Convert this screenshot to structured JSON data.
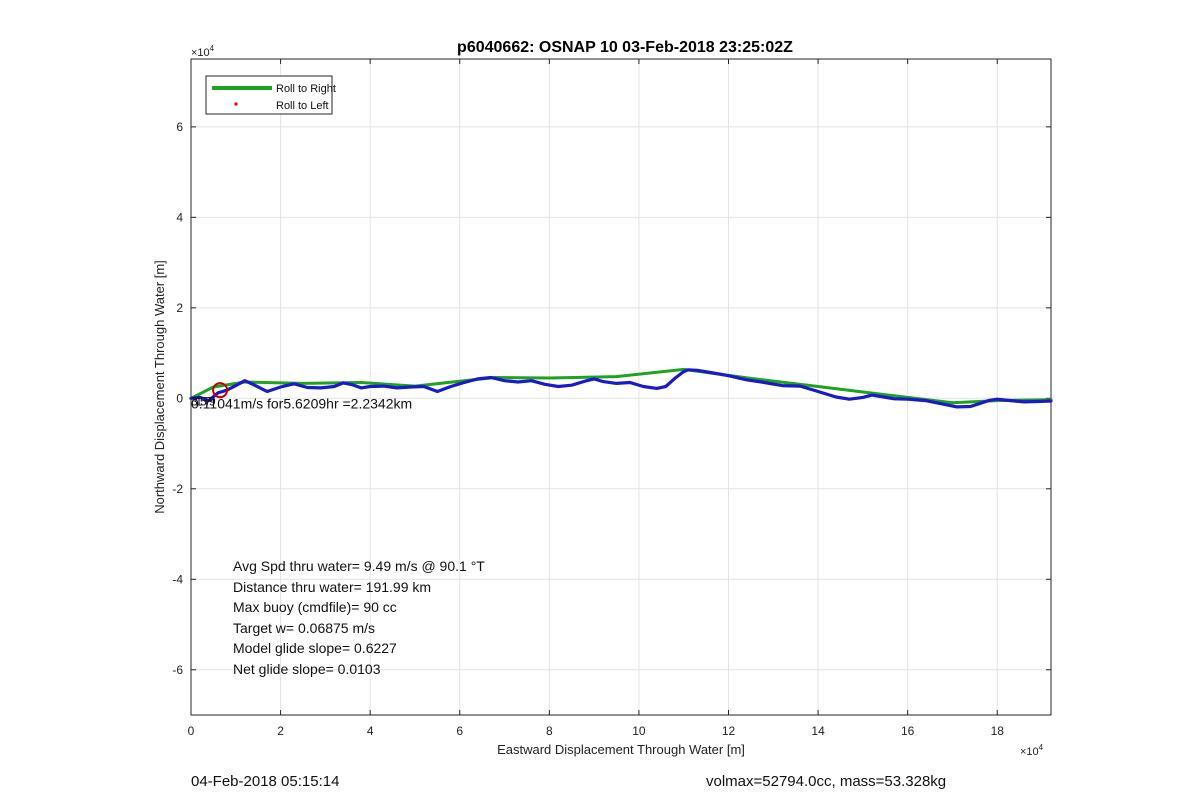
{
  "chart_data": {
    "type": "line",
    "title": "p6040662: OSNAP 10 03-Feb-2018 23:25:02Z",
    "xlabel": "Eastward Displacement Through Water [m]",
    "ylabel": "Northward Displacement Through Water [m]",
    "x_exponent_label": "×10",
    "y_exponent_label": "×10",
    "exponent": "4",
    "xlim": [
      0,
      192000
    ],
    "ylim": [
      -70000,
      75000
    ],
    "xticks": [
      0,
      20000,
      40000,
      60000,
      80000,
      100000,
      120000,
      140000,
      160000,
      180000
    ],
    "xtick_labels": [
      "0",
      "2",
      "4",
      "6",
      "8",
      "10",
      "12",
      "14",
      "16",
      "18"
    ],
    "yticks": [
      -60000,
      -40000,
      -20000,
      0,
      20000,
      40000,
      60000
    ],
    "ytick_labels": [
      "-6",
      "-4",
      "-2",
      "0",
      "2",
      "4",
      "6"
    ],
    "grid": true,
    "legend_position": "top-left",
    "legend": [
      {
        "label": "Roll to Right",
        "color": "#1fa31f",
        "marker": "line"
      },
      {
        "label": "Roll to Left",
        "color": "#e00000",
        "marker": "dot"
      }
    ],
    "series": [
      {
        "name": "Roll to Right",
        "color": "#1fa31f",
        "x": [
          0,
          5000,
          12000,
          25000,
          38000,
          50000,
          62000,
          68000,
          80000,
          95000,
          110000,
          125000,
          140000,
          155000,
          170000,
          180000,
          192000
        ],
        "y": [
          0,
          2500,
          3600,
          3300,
          3500,
          2700,
          4000,
          4600,
          4500,
          4800,
          6400,
          4400,
          2600,
          800,
          -1000,
          -500,
          -300
        ]
      },
      {
        "name": "",
        "color": "#1a1ac8",
        "x": [
          0,
          2000,
          4000,
          6000,
          8000,
          10000,
          12000,
          14000,
          17000,
          20000,
          23000,
          26000,
          29000,
          32000,
          34000,
          36000,
          38000,
          40000,
          43000,
          46000,
          49000,
          52000,
          55000,
          58000,
          61000,
          64000,
          67000,
          70000,
          73000,
          76000,
          79000,
          82000,
          85000,
          88000,
          90000,
          92000,
          95000,
          98000,
          101000,
          104000,
          106000,
          108000,
          110000,
          111000,
          113000,
          116000,
          120000,
          124000,
          128000,
          132000,
          136000,
          140000,
          144000,
          147000,
          150000,
          152000,
          154000,
          157000,
          160000,
          164000,
          168000,
          171000,
          174000,
          176000,
          178000,
          180000,
          183000,
          186000,
          189000,
          192000
        ],
        "y": [
          0,
          200,
          -500,
          1200,
          1800,
          2800,
          3900,
          3000,
          1500,
          2500,
          3200,
          2400,
          2300,
          2600,
          3400,
          3000,
          2300,
          2600,
          2700,
          2300,
          2500,
          2600,
          1500,
          2600,
          3500,
          4300,
          4600,
          3900,
          3600,
          3900,
          3100,
          2600,
          2900,
          3800,
          4300,
          3700,
          3300,
          3500,
          2600,
          2200,
          2600,
          4400,
          5900,
          6300,
          6200,
          5700,
          5000,
          4100,
          3500,
          2800,
          2700,
          1500,
          300,
          -200,
          200,
          700,
          400,
          -100,
          -200,
          -500,
          -1300,
          -1900,
          -1800,
          -1200,
          -500,
          -200,
          -500,
          -800,
          -700,
          -600
        ]
      }
    ],
    "segment_annotation": "0.11041m/s for5.6209hr =2.2342km",
    "overlap_labels": [
      "3",
      "1",
      "5",
      "7",
      "9"
    ],
    "stats": [
      "Avg Spd thru water=  9.49 m/s @  90.1 °T",
      "Distance thru water= 191.99 km",
      "Max buoy (cmdfile)= 90 cc",
      "Target w= 0.06875 m/s",
      "Model glide slope= 0.6227",
      "Net glide slope= 0.0103"
    ],
    "circle_marker": {
      "x": 6500,
      "y": 1800,
      "color": "#c00000"
    }
  },
  "footer": {
    "timestamp": "04-Feb-2018 05:15:14",
    "summary": "volmax=52794.0cc, mass=53.328kg"
  }
}
